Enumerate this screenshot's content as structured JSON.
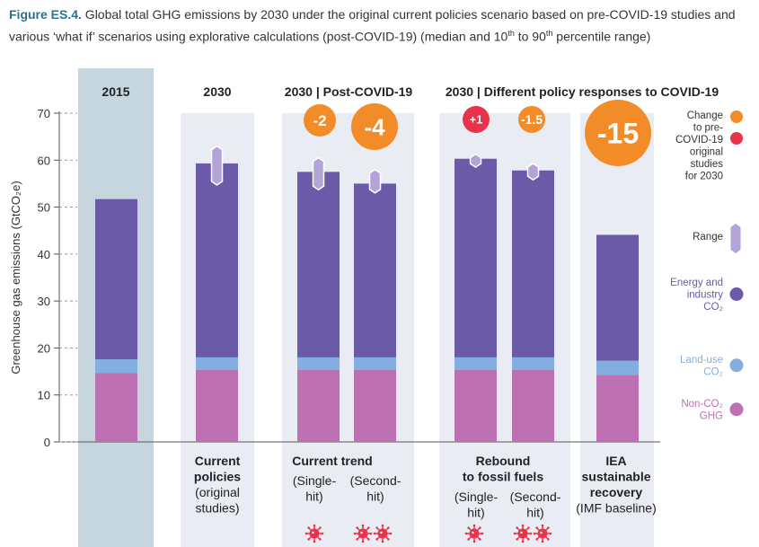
{
  "caption": {
    "figure_label": "Figure ES.4.",
    "text_part1": " Global total GHG emissions by 2030 under the original current policies scenario based on pre-COVID-19 studies and various ‘what if’ scenarios using explorative calculations (post-COVID-19) (median and 10",
    "sup1": "th",
    "text_part2": " to 90",
    "sup2": "th",
    "text_part3": " percentile range)"
  },
  "colors": {
    "non_co2": "#bd71b3",
    "land_use": "#85aee0",
    "energy": "#6b5aa8",
    "range": "#b3a3d6",
    "panel": "#e9edf3",
    "panel_2015": "#c5d6de",
    "orange": "#f28c28",
    "red": "#e8334b",
    "axis_text": "#333333"
  },
  "chart_data": {
    "type": "bar",
    "stacked": true,
    "ylabel": "Greenhouse gas emissions (GtCO₂e)",
    "ylim": [
      0,
      70
    ],
    "yticks": [
      0,
      10,
      20,
      30,
      40,
      50,
      60,
      70
    ],
    "grid": false,
    "panel_headers": [
      "2015",
      "2030",
      "2030 | Post-COVID-19",
      "2030 | Different policy responses to COVID-19"
    ],
    "categories": [
      "2015",
      "Current policies (original studies)",
      "Current trend (Single-hit)",
      "Current trend (Second-hit)",
      "Rebound to fossil fuels (Single-hit)",
      "Rebound to fossil fuels (Second-hit)",
      "IEA sustainable recovery (IMF baseline)"
    ],
    "series": [
      {
        "name": "Non-CO₂ GHG",
        "color_key": "non_co2",
        "values": [
          14.7,
          15.3,
          15.3,
          15.3,
          15.3,
          15.3,
          14.3
        ]
      },
      {
        "name": "Land-use CO₂",
        "color_key": "land_use",
        "values": [
          2.9,
          2.7,
          2.7,
          2.7,
          2.7,
          2.7,
          3.0
        ]
      },
      {
        "name": "Energy and industry CO₂",
        "color_key": "energy",
        "values": [
          34.1,
          41.3,
          39.5,
          37.0,
          42.3,
          39.8,
          26.8
        ]
      }
    ],
    "totals": [
      51.7,
      59.3,
      57.5,
      55.0,
      60.3,
      57.8,
      44.1
    ],
    "ranges": [
      null,
      [
        54.7,
        63.0
      ],
      [
        53.7,
        60.5
      ],
      [
        53.0,
        58.0
      ],
      [
        58.5,
        61.3
      ],
      [
        55.8,
        59.3
      ],
      null
    ],
    "change_badges": [
      {
        "bar": 2,
        "label": "-2",
        "color_key": "orange",
        "size": "medium"
      },
      {
        "bar": 3,
        "label": "-4",
        "color_key": "orange",
        "size": "large"
      },
      {
        "bar": 4,
        "label": "+1",
        "color_key": "red",
        "size": "small"
      },
      {
        "bar": 5,
        "label": "-1.5",
        "color_key": "orange",
        "size": "small"
      },
      {
        "bar": 6,
        "label": "-15",
        "color_key": "orange",
        "size": "xlarge"
      }
    ],
    "virus_icons": [
      {
        "bar": 2,
        "count": 1
      },
      {
        "bar": 3,
        "count": 2
      },
      {
        "bar": 4,
        "count": 1
      },
      {
        "bar": 5,
        "count": 2
      }
    ],
    "labels": [
      {
        "key": "current_policies",
        "lines": [
          {
            "t": "Current",
            "b": true
          },
          {
            "t": "policies",
            "b": true
          },
          {
            "t": "(original",
            "b": false
          },
          {
            "t": "studies)",
            "b": false
          }
        ]
      },
      {
        "key": "current_trend",
        "lines": [
          {
            "t": "Current trend",
            "b": true
          }
        ]
      },
      {
        "key": "ct_single",
        "lines": [
          {
            "t": "(Single-",
            "b": false
          },
          {
            "t": "hit)",
            "b": false
          }
        ]
      },
      {
        "key": "ct_second",
        "lines": [
          {
            "t": "(Second-",
            "b": false
          },
          {
            "t": "hit)",
            "b": false
          }
        ]
      },
      {
        "key": "rebound",
        "lines": [
          {
            "t": "Rebound",
            "b": true
          },
          {
            "t": "to fossil fuels",
            "b": true
          }
        ]
      },
      {
        "key": "rb_single",
        "lines": [
          {
            "t": "(Single-",
            "b": false
          },
          {
            "t": "hit)",
            "b": false
          }
        ]
      },
      {
        "key": "rb_second",
        "lines": [
          {
            "t": "(Second-",
            "b": false
          },
          {
            "t": "hit)",
            "b": false
          }
        ]
      },
      {
        "key": "iea",
        "lines": [
          {
            "t": "IEA",
            "b": true
          },
          {
            "t": "sustainable",
            "b": true
          },
          {
            "t": "recovery",
            "b": true
          },
          {
            "t": "(IMF baseline)",
            "b": false
          }
        ]
      }
    ],
    "legend": [
      {
        "key": "change",
        "lines": [
          "Change",
          "to pre-",
          "COVID-19",
          "original",
          "studies",
          "for 2030"
        ],
        "color_key": "axis_text",
        "marker": "dots"
      },
      {
        "key": "range",
        "lines": [
          "Range"
        ],
        "color_key": "axis_text",
        "marker": "hex"
      },
      {
        "key": "energy",
        "lines": [
          "Energy and",
          "industry",
          "CO₂"
        ],
        "color_key": "energy",
        "marker": "circle"
      },
      {
        "key": "land_use",
        "lines": [
          "Land-use",
          "CO₂"
        ],
        "color_key": "land_use",
        "marker": "circle"
      },
      {
        "key": "non_co2",
        "lines": [
          "Non-CO₂",
          "GHG"
        ],
        "color_key": "non_co2",
        "marker": "circle"
      }
    ]
  }
}
